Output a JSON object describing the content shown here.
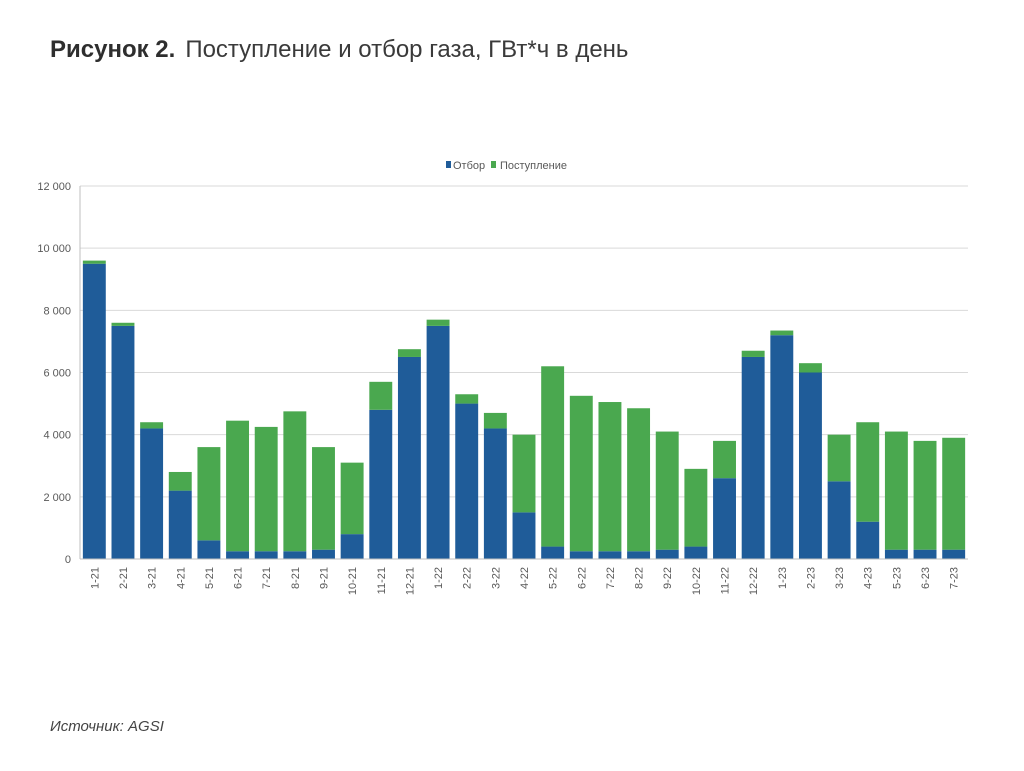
{
  "figure": {
    "number": "Рисунок 2.",
    "title": "Поступление и отбор газа, ГВт*ч в день"
  },
  "source": {
    "label": "Источник:",
    "value": "AGSI"
  },
  "colors": {
    "withdrawal": "#1f5c99",
    "injection": "#4aa84f",
    "grid": "#d9d9d9",
    "axis_text": "#595959"
  },
  "chart_data": {
    "type": "bar",
    "title": "",
    "xlabel": "",
    "ylabel": "",
    "legend_position": "top",
    "grid": true,
    "ylim": [
      0,
      12000
    ],
    "yticks": [
      "0",
      "2 000",
      "4 000",
      "6 000",
      "8 000",
      "10 000",
      "12 000"
    ],
    "categories": [
      "1-21",
      "2-21",
      "3-21",
      "4-21",
      "5-21",
      "6-21",
      "7-21",
      "8-21",
      "9-21",
      "10-21",
      "11-21",
      "12-21",
      "1-22",
      "2-22",
      "3-22",
      "4-22",
      "5-22",
      "6-22",
      "7-22",
      "8-22",
      "9-22",
      "10-22",
      "11-22",
      "12-22",
      "1-23",
      "2-23",
      "3-23",
      "4-23",
      "5-23",
      "6-23",
      "7-23"
    ],
    "series": [
      {
        "name": "Отбор",
        "color": "#1f5c99",
        "values": [
          9500,
          7500,
          4200,
          2200,
          600,
          250,
          250,
          250,
          300,
          800,
          4800,
          6500,
          7500,
          5000,
          4200,
          1500,
          400,
          250,
          250,
          250,
          300,
          400,
          2600,
          6500,
          7200,
          6000,
          2500,
          1200,
          300,
          300,
          300
        ]
      },
      {
        "name": "Поступление",
        "color": "#4aa84f",
        "values": [
          100,
          100,
          200,
          600,
          3000,
          4200,
          4000,
          4500,
          3300,
          2300,
          900,
          250,
          200,
          300,
          500,
          2500,
          5800,
          5000,
          4800,
          4600,
          3800,
          2500,
          1200,
          200,
          150,
          300,
          1500,
          3200,
          3800,
          3500,
          3600
        ]
      }
    ]
  }
}
